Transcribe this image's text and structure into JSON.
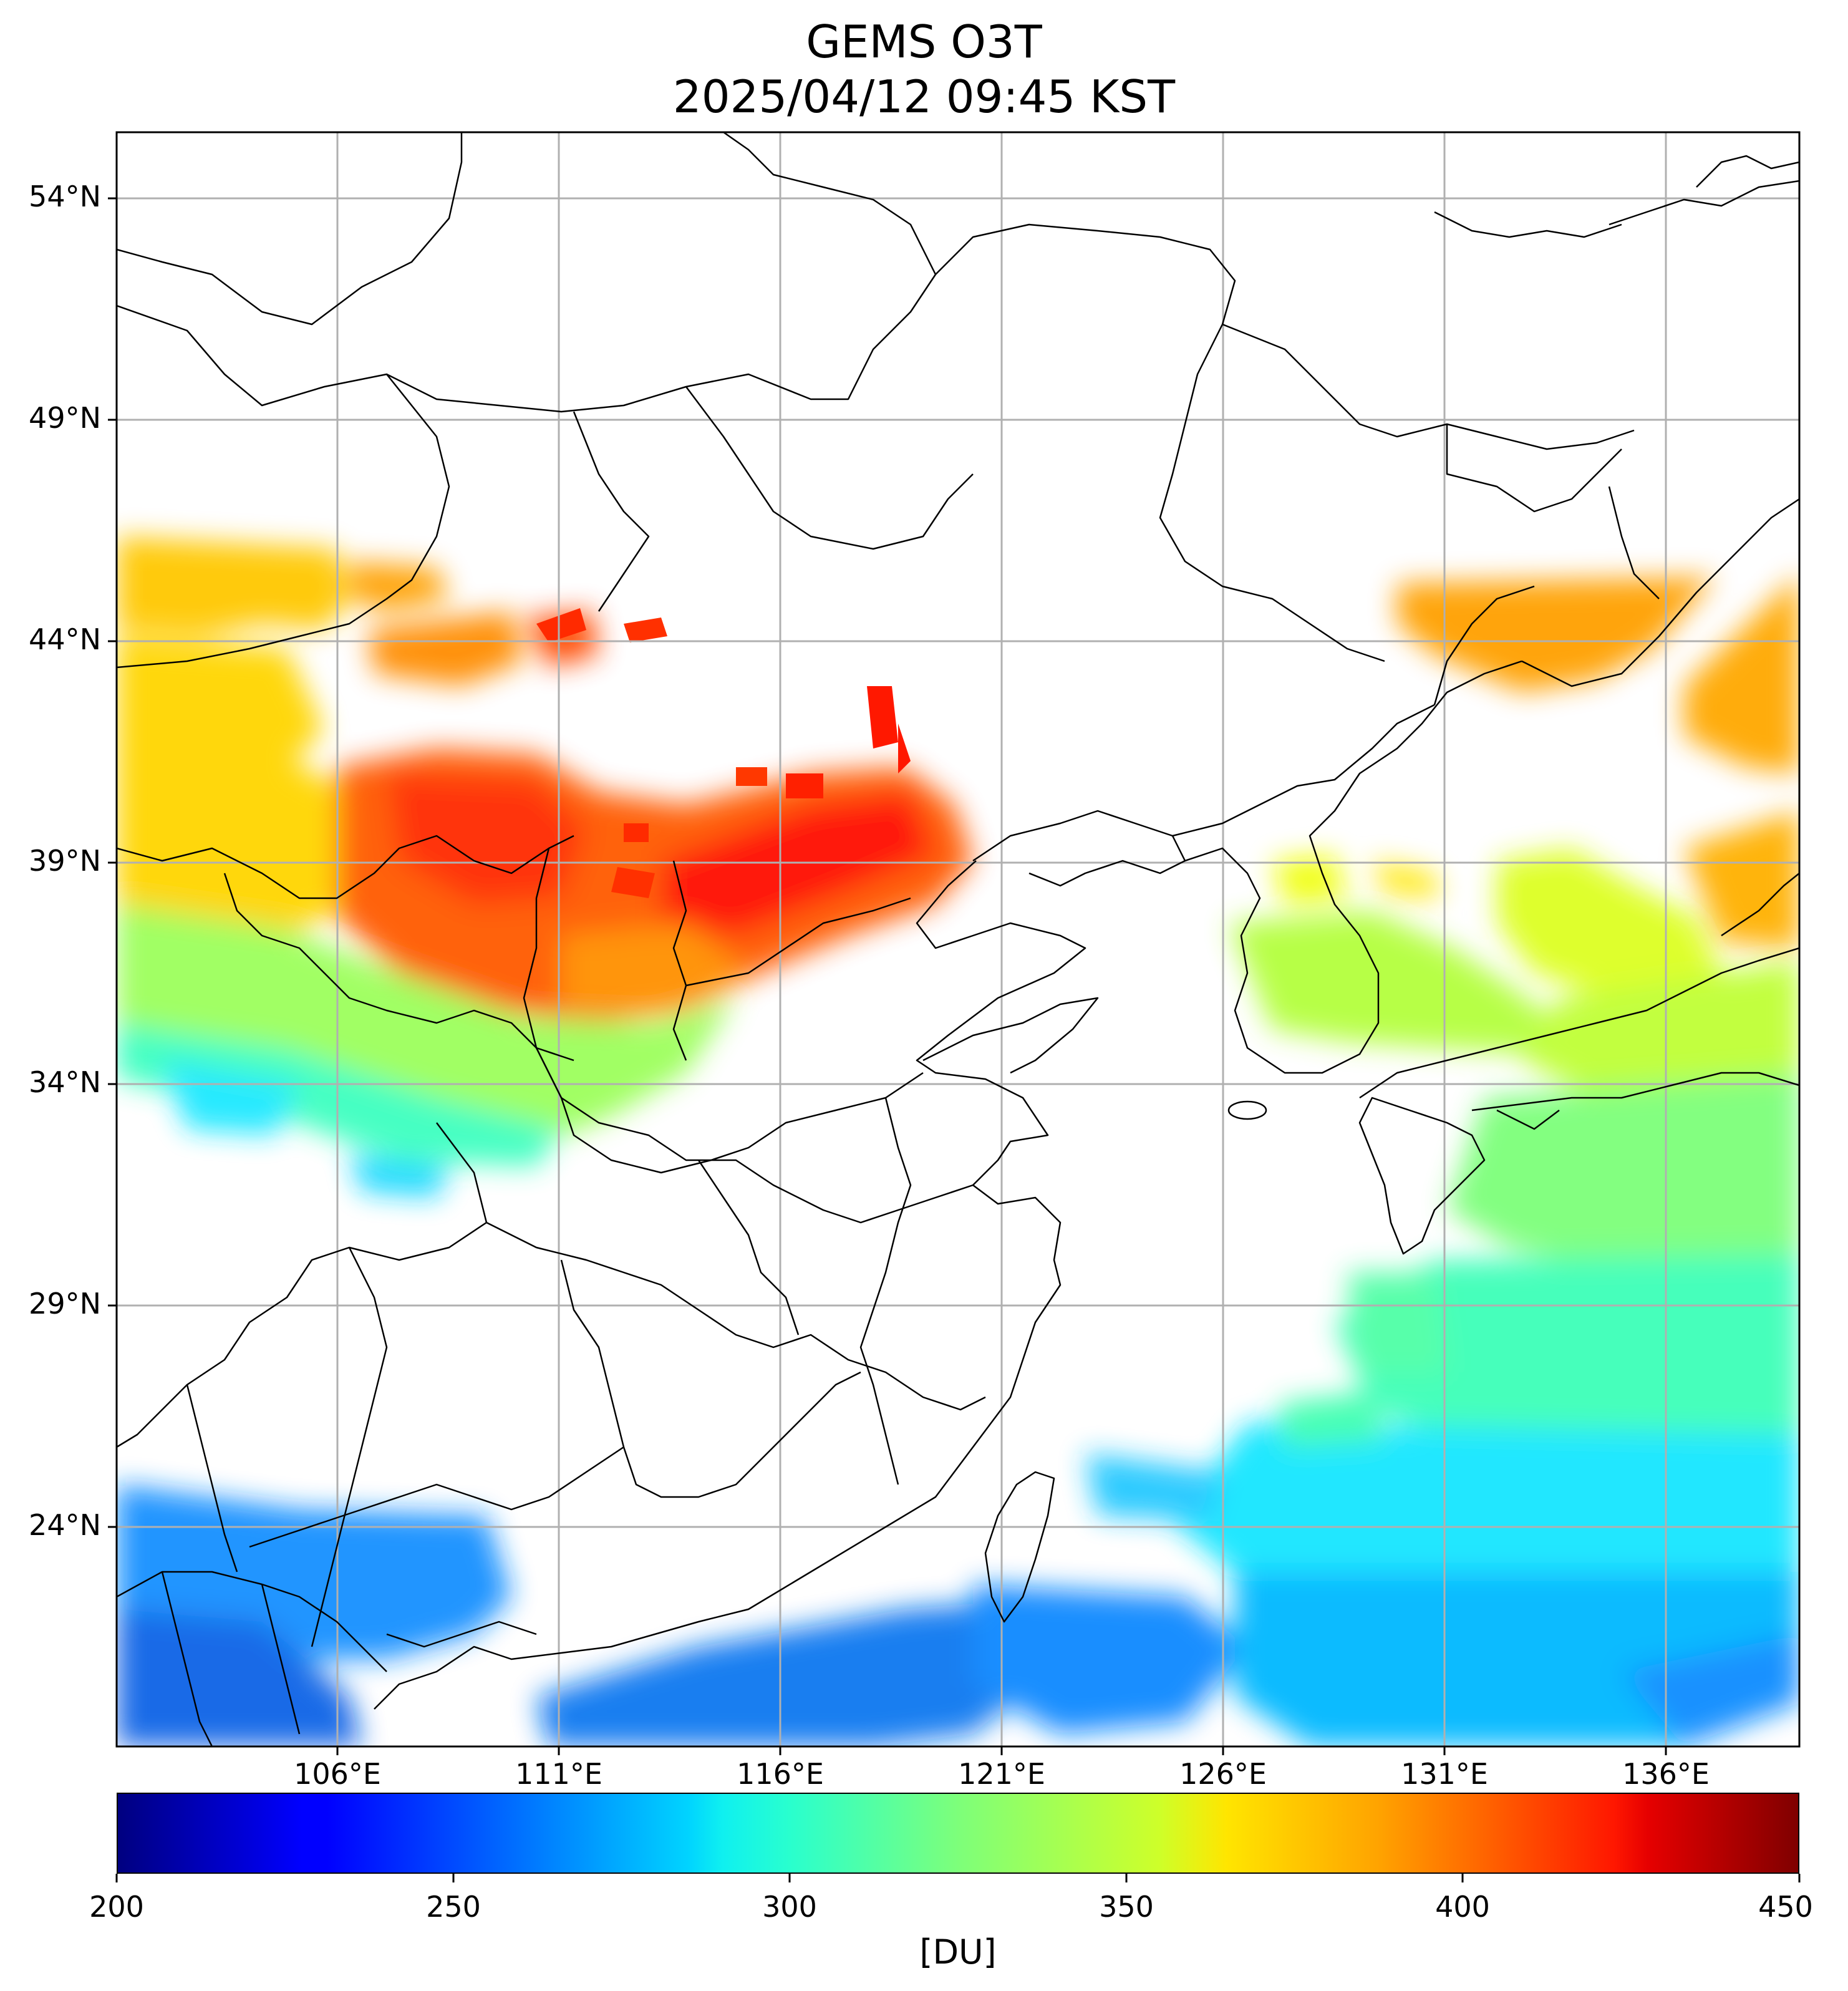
{
  "title": {
    "line1": "GEMS O3T",
    "line2": "2025/04/12 09:45 KST"
  },
  "map": {
    "extent": {
      "lon_min": 101,
      "lon_max": 139,
      "lat_min": 19.5,
      "lat_max": 56
    },
    "latitude_ticks": [
      {
        "value": 54,
        "label": "54°N"
      },
      {
        "value": 49,
        "label": "49°N"
      },
      {
        "value": 44,
        "label": "44°N"
      },
      {
        "value": 39,
        "label": "39°N"
      },
      {
        "value": 34,
        "label": "34°N"
      },
      {
        "value": 29,
        "label": "29°N"
      },
      {
        "value": 24,
        "label": "24°N"
      }
    ],
    "longitude_ticks": [
      {
        "value": 106,
        "label": "106°E"
      },
      {
        "value": 111,
        "label": "111°E"
      },
      {
        "value": 116,
        "label": "116°E"
      },
      {
        "value": 121,
        "label": "121°E"
      },
      {
        "value": 126,
        "label": "126°E"
      },
      {
        "value": 131,
        "label": "131°E"
      },
      {
        "value": 136,
        "label": "136°E"
      }
    ],
    "grid": true,
    "coastlines": true,
    "admin_borders": true
  },
  "colorbar": {
    "colormap": "jet",
    "min": 200,
    "max": 450,
    "ticks": [
      {
        "value": 200,
        "label": "200"
      },
      {
        "value": 250,
        "label": "250"
      },
      {
        "value": 300,
        "label": "300"
      },
      {
        "value": 350,
        "label": "350"
      },
      {
        "value": 400,
        "label": "400"
      },
      {
        "value": 450,
        "label": "450"
      }
    ],
    "unit": "[DU]",
    "placement": "bottom"
  },
  "colors": {
    "grid": "#b0b0b0",
    "border_lines": "#000000",
    "no_data": "#ffffff"
  }
}
